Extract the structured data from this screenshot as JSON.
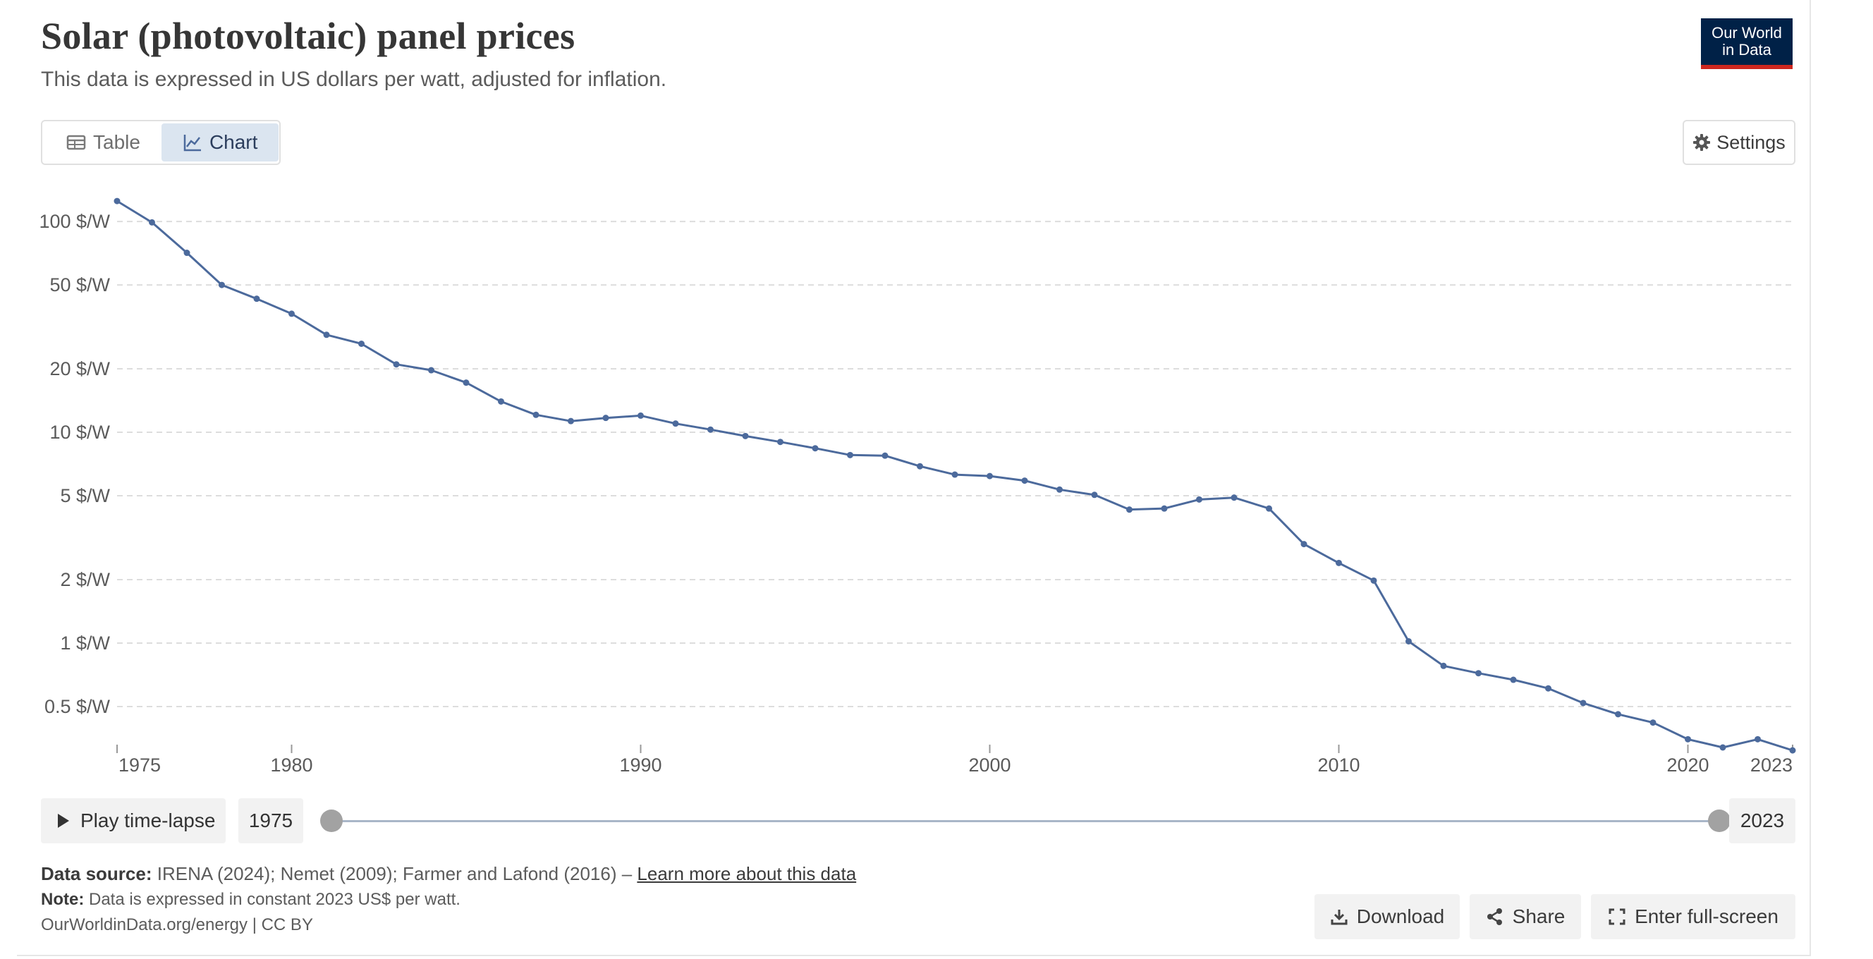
{
  "header": {
    "title": "Solar (photovoltaic) panel prices",
    "subtitle": "This data is expressed in US dollars per watt, adjusted for inflation.",
    "logo_line1": "Our World",
    "logo_line2": "in Data"
  },
  "tabs": [
    {
      "label": "Table",
      "icon": "table-icon",
      "active": false
    },
    {
      "label": "Chart",
      "icon": "line-chart-icon",
      "active": true
    }
  ],
  "settings_label": "Settings",
  "chart_data": {
    "type": "line",
    "title": "Solar (photovoltaic) panel prices",
    "subtitle": "This data is expressed in US dollars per watt, adjusted for inflation.",
    "yscale": "log",
    "ylim": [
      0.32,
      130
    ],
    "xlim": [
      1975,
      2023
    ],
    "grid": true,
    "y_ticks": [
      {
        "value": 100,
        "label": "100 $/W"
      },
      {
        "value": 50,
        "label": "50 $/W"
      },
      {
        "value": 20,
        "label": "20 $/W"
      },
      {
        "value": 10,
        "label": "10 $/W"
      },
      {
        "value": 5,
        "label": "5 $/W"
      },
      {
        "value": 2,
        "label": "2 $/W"
      },
      {
        "value": 1,
        "label": "1 $/W"
      },
      {
        "value": 0.5,
        "label": "0.5 $/W"
      }
    ],
    "x_ticks": [
      {
        "value": 1975,
        "label": "1975"
      },
      {
        "value": 1980,
        "label": "1980"
      },
      {
        "value": 1990,
        "label": "1990"
      },
      {
        "value": 2000,
        "label": "2000"
      },
      {
        "value": 2010,
        "label": "2010"
      },
      {
        "value": 2020,
        "label": "2020"
      },
      {
        "value": 2023,
        "label": "2023"
      }
    ],
    "line_color": "#4c6a9c",
    "x": [
      1975,
      1976,
      1977,
      1978,
      1979,
      1980,
      1981,
      1982,
      1983,
      1984,
      1985,
      1986,
      1987,
      1988,
      1989,
      1990,
      1991,
      1992,
      1993,
      1994,
      1995,
      1996,
      1997,
      1998,
      1999,
      2000,
      2001,
      2002,
      2003,
      2004,
      2005,
      2006,
      2007,
      2008,
      2009,
      2010,
      2011,
      2012,
      2013,
      2014,
      2015,
      2016,
      2017,
      2018,
      2019,
      2020,
      2021,
      2022,
      2023
    ],
    "y": [
      125,
      99,
      71,
      50,
      43,
      36.5,
      29,
      26.3,
      21,
      19.7,
      17.2,
      14,
      12.1,
      11.3,
      11.7,
      12,
      11,
      10.3,
      9.6,
      9,
      8.4,
      7.8,
      7.75,
      6.9,
      6.3,
      6.2,
      5.9,
      5.35,
      5.05,
      4.3,
      4.35,
      4.8,
      4.9,
      4.35,
      2.95,
      2.4,
      1.98,
      1.02,
      0.78,
      0.72,
      0.67,
      0.61,
      0.52,
      0.46,
      0.42,
      0.35,
      0.32,
      0.35,
      0.31
    ]
  },
  "timeline": {
    "play_label": "Play time-lapse",
    "start_year": "1975",
    "end_year": "2023",
    "start_fraction": 0,
    "end_fraction": 1
  },
  "footer": {
    "source_label": "Data source:",
    "source_text": " IRENA (2024); Nemet (2009); Farmer and Lafond (2016) – ",
    "learn_more": "Learn more about this data",
    "note_label": "Note:",
    "note_text": " Data is expressed in constant 2023 US$ per watt.",
    "credit": "OurWorldinData.org/energy | CC BY"
  },
  "actions": {
    "download": "Download",
    "share": "Share",
    "fullscreen": "Enter full-screen"
  }
}
